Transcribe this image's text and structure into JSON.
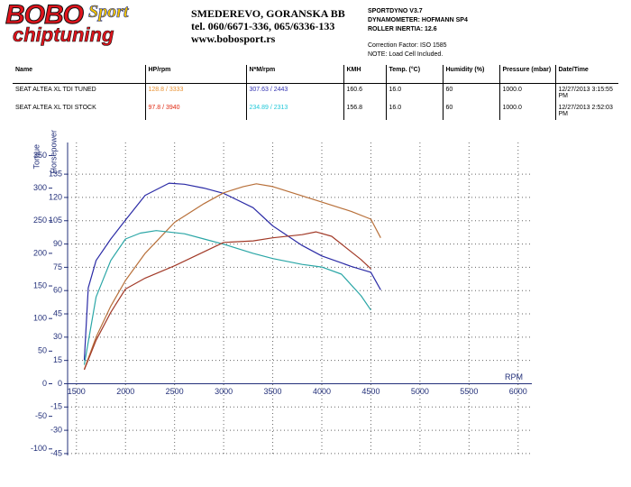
{
  "header": {
    "logo": {
      "brand": "BOBO",
      "script": "Sport",
      "tagline": "chiptuning"
    },
    "address": [
      "SMEDEREVO, GORANSKA BB",
      "tel. 060/6671-336, 065/6336-133",
      "www.bobosport.rs"
    ],
    "dyno": [
      "SPORTDYNO V3.7",
      "DYNAMOMETER: HOFMANN SP4",
      "ROLLER INERTIA:  12.6"
    ],
    "notes": [
      "Correction Factor: ISO 1585",
      "NOTE: Load Cell Included."
    ]
  },
  "table": {
    "columns": [
      "Name",
      "HP/rpm",
      "N*M/rpm",
      "KMH",
      "Temp. (°C)",
      "Humidity (%)",
      "Pressure (mbar)",
      "Date/Time"
    ],
    "rows": [
      [
        "SEAT ALTEA XL TDI TUNED",
        "128.8 / 3333",
        "307.63 / 2443",
        "160.6",
        "16.0",
        "60",
        "1000.0",
        "12/27/2013 3:15:55 PM"
      ],
      [
        "SEAT ALTEA XL TDI STOCK",
        "97.8 / 3940",
        "234.89 / 2313",
        "156.8",
        "16.0",
        "60",
        "1000.0",
        "12/27/2013 2:52:03 PM"
      ]
    ]
  },
  "chart_data": {
    "type": "line",
    "x_label": "RPM",
    "y_label": "Torque",
    "y2_label": "Horsepower",
    "xlim": [
      1410,
      6140
    ],
    "xticks": [
      1500,
      2000,
      2500,
      3000,
      3500,
      4000,
      4500,
      5000,
      5500,
      6000
    ],
    "ylim": [
      -110,
      370
    ],
    "yticks": [
      -100,
      -50,
      0,
      50,
      100,
      150,
      200,
      250,
      300,
      350
    ],
    "y2lim": [
      -46.2,
      155.4
    ],
    "y2ticks": [
      -45,
      -30,
      -15,
      0,
      15,
      30,
      45,
      60,
      75,
      90,
      105,
      120,
      135
    ],
    "grid": true,
    "series": [
      {
        "color": "#2b2ba6",
        "x": [
          1580,
          1620,
          1700,
          1850,
          2000,
          2200,
          2443,
          2600,
          2800,
          3000,
          3300,
          3500,
          3800,
          4000,
          4300,
          4500,
          4600
        ],
        "values": [
          36,
          147,
          189,
          222,
          251,
          289,
          307.63,
          306,
          300,
          292,
          270,
          242,
          212,
          196,
          180,
          171,
          144
        ]
      },
      {
        "color": "#b8703a",
        "axis": "y2",
        "x": [
          1580,
          1700,
          1850,
          2000,
          2200,
          2500,
          2800,
          3000,
          3200,
          3333,
          3500,
          3800,
          4000,
          4300,
          4500,
          4600
        ],
        "values": [
          9.3,
          30,
          50,
          66.5,
          84,
          104,
          116,
          123,
          127,
          128.8,
          127,
          121,
          117,
          111,
          106,
          94
        ]
      },
      {
        "color": "#2aa6a6",
        "x": [
          1580,
          1700,
          1850,
          2000,
          2150,
          2313,
          2600,
          2800,
          3000,
          3300,
          3500,
          3800,
          4000,
          4200,
          4400,
          4500
        ],
        "values": [
          29,
          133,
          189,
          222,
          231,
          234.89,
          230,
          222,
          214,
          200,
          192,
          183,
          179,
          168,
          135,
          113
        ]
      },
      {
        "color": "#a23a28",
        "axis": "y2",
        "x": [
          1580,
          1700,
          1850,
          2000,
          2200,
          2500,
          2800,
          3000,
          3300,
          3500,
          3800,
          3940,
          4100,
          4200,
          4400,
          4500
        ],
        "values": [
          9,
          28,
          46,
          61,
          68,
          76,
          85,
          91,
          92,
          94,
          96,
          97.8,
          95,
          90,
          80,
          74
        ]
      }
    ]
  }
}
